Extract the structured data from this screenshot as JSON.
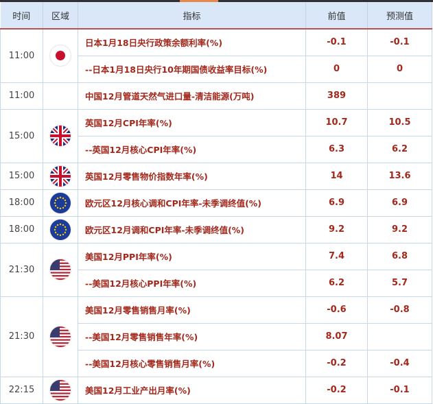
{
  "header": {
    "time": "时间",
    "region": "区域",
    "indicator": "指标",
    "previous": "前值",
    "forecast": "预测值"
  },
  "groups": [
    {
      "time": "11:00",
      "flag": "japan-flag-icon",
      "rows": [
        {
          "indicator": "日本1月18日央行政策余额利率(%)",
          "previous": "-0.1",
          "forecast": "-0.1"
        },
        {
          "indicator": "--日本1月18日央行10年期国债收益率目标(%)",
          "previous": "0",
          "forecast": "0"
        }
      ]
    },
    {
      "time": "11:00",
      "flag": "",
      "rows": [
        {
          "indicator": "中国12月管道天然气进口量-清洁能源(万吨)",
          "previous": "389",
          "forecast": ""
        }
      ]
    },
    {
      "time": "15:00",
      "flag": "uk-flag-icon",
      "rows": [
        {
          "indicator": "英国12月CPI年率(%)",
          "previous": "10.7",
          "forecast": "10.5"
        },
        {
          "indicator": "--英国12月核心CPI年率(%)",
          "previous": "6.3",
          "forecast": "6.2"
        }
      ]
    },
    {
      "time": "15:00",
      "flag": "uk-flag-icon",
      "rows": [
        {
          "indicator": "英国12月零售物价指数年率(%)",
          "previous": "14",
          "forecast": "13.6"
        }
      ]
    },
    {
      "time": "18:00",
      "flag": "eu-flag-icon",
      "rows": [
        {
          "indicator": "欧元区12月核心调和CPI年率-未季调终值(%)",
          "previous": "6.9",
          "forecast": "6.9"
        }
      ]
    },
    {
      "time": "18:00",
      "flag": "eu-flag-icon",
      "rows": [
        {
          "indicator": "欧元区12月调和CPI年率-未季调终值(%)",
          "previous": "9.2",
          "forecast": "9.2"
        }
      ]
    },
    {
      "time": "21:30",
      "flag": "us-flag-icon",
      "rows": [
        {
          "indicator": "美国12月PPI年率(%)",
          "previous": "7.4",
          "forecast": "6.8"
        },
        {
          "indicator": "--美国12月核心PPI年率(%)",
          "previous": "6.2",
          "forecast": "5.7"
        }
      ]
    },
    {
      "time": "21:30",
      "flag": "us-flag-icon",
      "rows": [
        {
          "indicator": "美国12月零售销售月率(%)",
          "previous": "-0.6",
          "forecast": "-0.8"
        },
        {
          "indicator": "--美国12月零售销售年率(%)",
          "previous": "8.07",
          "forecast": ""
        },
        {
          "indicator": "--美国12月核心零售销售月率(%)",
          "previous": "-0.2",
          "forecast": "-0.4"
        }
      ]
    },
    {
      "time": "22:15",
      "flag": "us-flag-icon",
      "rows": [
        {
          "indicator": "美国12月工业产出月率(%)",
          "previous": "-0.2",
          "forecast": "-0.1"
        }
      ]
    }
  ]
}
